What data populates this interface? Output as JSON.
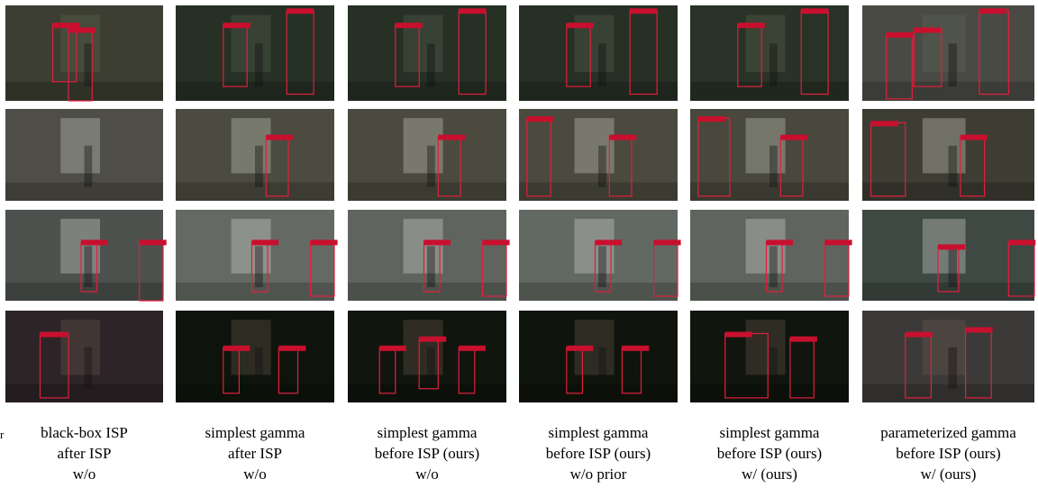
{
  "figure": {
    "stray_text": "r",
    "columns": [
      {
        "lines": [
          "black-box ISP",
          "after ISP",
          "w/o"
        ]
      },
      {
        "lines": [
          "simplest gamma",
          "after ISP",
          "w/o"
        ]
      },
      {
        "lines": [
          "simplest gamma",
          "before ISP (ours)",
          "w/o"
        ]
      },
      {
        "lines": [
          "simplest gamma",
          "before ISP (ours)",
          "w/o prior"
        ]
      },
      {
        "lines": [
          "simplest gamma",
          "before ISP (ours)",
          "w/ (ours)"
        ]
      },
      {
        "lines": [
          "parameterized gamma",
          "before ISP (ours)",
          "w/ (ours)"
        ]
      }
    ]
  }
}
